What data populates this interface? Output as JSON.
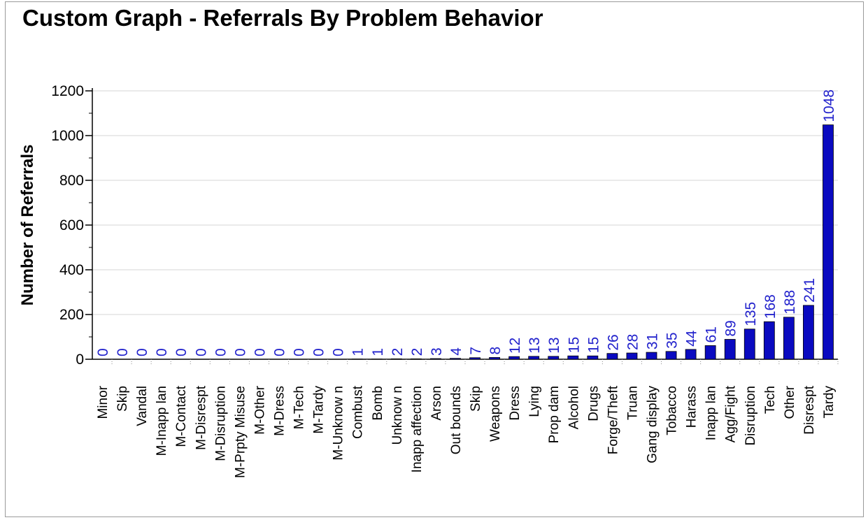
{
  "chart_data": {
    "type": "bar",
    "title": "Custom Graph - Referrals By Problem Behavior",
    "xlabel": "",
    "ylabel": "Number of Referrals",
    "ylim": [
      0,
      1200
    ],
    "yticks": [
      0,
      200,
      400,
      600,
      800,
      1000,
      1200
    ],
    "grid": true,
    "legend": "none",
    "bar_color": "#0a0ac0",
    "label_color": "#2222cc",
    "categories": [
      "Minor",
      "Skip",
      "Vandal",
      "M-Inapp lan",
      "M-Contact",
      "M-Disrespt",
      "M-Disruption",
      "M-Prpty Misuse",
      "M-Other",
      "M-Dress",
      "M-Tech",
      "M-Tardy",
      "M-Unknow n",
      "Combust",
      "Bomb",
      "Unknow n",
      "Inapp affection",
      "Arson",
      "Out bounds",
      "Skip",
      "Weapons",
      "Dress",
      "Lying",
      "Prop dam",
      "Alcohol",
      "Drugs",
      "Forge/Theft",
      "Truan",
      "Gang display",
      "Tobacco",
      "Harass",
      "Inapp lan",
      "Agg/Fight",
      "Disruption",
      "Tech",
      "Other",
      "Disrespt",
      "Tardy"
    ],
    "values": [
      0,
      0,
      0,
      0,
      0,
      0,
      0,
      0,
      0,
      0,
      0,
      0,
      0,
      1,
      1,
      2,
      2,
      3,
      4,
      7,
      8,
      12,
      13,
      13,
      15,
      15,
      26,
      28,
      31,
      35,
      44,
      61,
      89,
      135,
      168,
      188,
      241,
      1048
    ]
  }
}
